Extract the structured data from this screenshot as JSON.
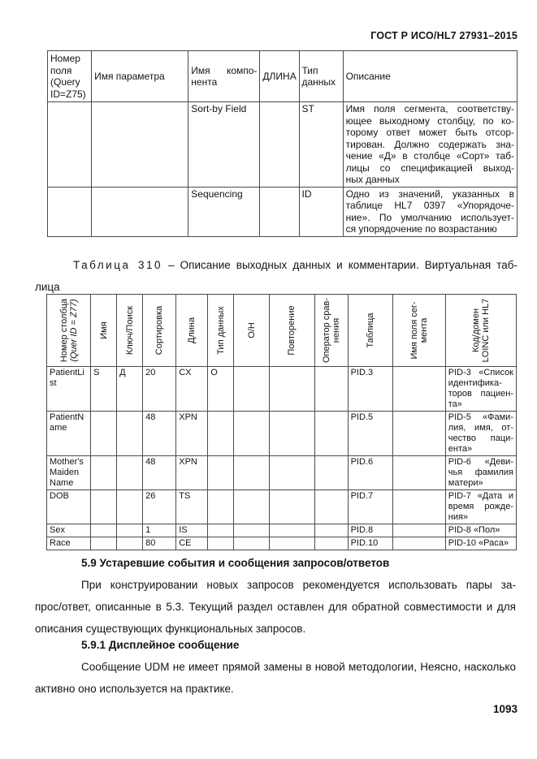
{
  "page": {
    "gost_header": "ГОСТ Р ИСО/HL7 27931–2015",
    "number": "1093"
  },
  "table1": {
    "headers": [
      "Номер\nполя\n(Query\nID=Z75)",
      "Имя параметра",
      "Имя компо-\nнента",
      "ДЛИНА",
      "Тип\nданных",
      "Описание"
    ],
    "rows": [
      [
        "",
        "",
        "Sort-by Field",
        "",
        "ST",
        "Имя поля сегмента, соответству-\nющее выходному столбцу, по ко-\nторому ответ может быть отсор-\nтирован. Должно содержать зна-\nчение «Д» в столбце «Сорт» таб-\nлицы со спецификацией выход-\nных данных"
      ],
      [
        "",
        "",
        "Sequencing",
        "",
        "ID",
        "Одно из значений, указанных в\nтаблице HL7 0397 «Упорядоче-\nние». По умолчанию использует-\nся упорядочение по возрастанию"
      ]
    ]
  },
  "caption": {
    "label": "Таблица 310",
    "rest": " – Описание выходных данных и комментарии. Виртуальная таб-",
    "line2": "лица"
  },
  "table2": {
    "headers": [
      {
        "line1": "Номер столбца",
        "line2": "(Quer ID = Z77)"
      },
      "Имя",
      "Ключ/Поиск",
      "Сортировка",
      "Длина",
      "Тип данных",
      "О/Н",
      "Повторение",
      "Оператор срав-\nнения",
      "Таблица",
      "Имя поля сег-\nмента",
      "Код/домен\nLOINC или HL7"
    ],
    "rows": [
      [
        "PatientLi\nst",
        "S",
        "Д",
        "20",
        "CX",
        "O",
        "",
        "",
        "",
        "PID.3",
        "",
        "PID-3 «Список\nидентифика-\nторов пациен-\nта»"
      ],
      [
        "PatientN\name",
        "",
        "",
        "48",
        "XPN",
        "",
        "",
        "",
        "",
        "PID.5",
        "",
        "PID-5 «Фами-\nлия, имя, от-\nчество паци-\nента»"
      ],
      [
        "Mother's\nMaiden\nName",
        "",
        "",
        "48",
        "XPN",
        "",
        "",
        "",
        "",
        "PID.6",
        "",
        "PID-6 «Деви-\nчья фамилия\nматери»"
      ],
      [
        "DOB",
        "",
        "",
        "26",
        "TS",
        "",
        "",
        "",
        "",
        "PID.7",
        "",
        "PID-7 «Дата и\nвремя рожде-\nния»"
      ],
      [
        "Sex",
        "",
        "",
        "1",
        "IS",
        "",
        "",
        "",
        "",
        "PID.8",
        "",
        "PID-8 «Пол»"
      ],
      [
        "Race",
        "",
        "",
        "80",
        "CE",
        "",
        "",
        "",
        "",
        "PID.10",
        "",
        "PID-10 «Раса»"
      ]
    ]
  },
  "sections": [
    {
      "heading": "5.9 Устаревшие события и сообщения запросов/ответов",
      "lines": [
        "При конструировании новых запросов рекомендуется использовать пары за-",
        "прос/ответ, описанные в 5.3. Текущий раздел оставлен для обратной совместимости и для",
        "описания существующих функциональных запросов."
      ]
    },
    {
      "heading": "5.9.1 Дисплейное сообщение",
      "lines": [
        "Сообщение UDM не имеет прямой замены в новой методологии, Неясно, насколько",
        "активно оно используется на практике."
      ]
    }
  ]
}
